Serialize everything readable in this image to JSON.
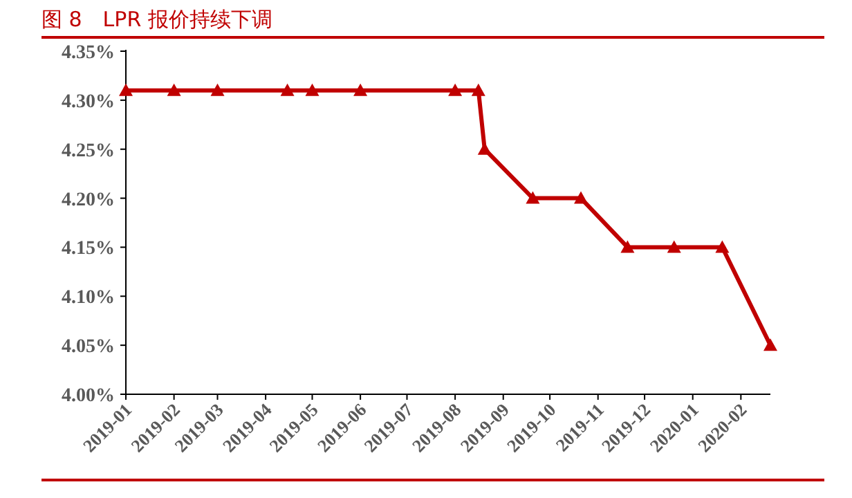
{
  "chart_data": {
    "type": "line",
    "title": "图 8　LPR 报价持续下调",
    "x": [
      "2019-01-01",
      "2019-02-01",
      "2019-03-01",
      "2019-04-15",
      "2019-05-01",
      "2019-06-01",
      "2019-08-01",
      "2019-08-16",
      "2019-08-20",
      "2019-09-20",
      "2019-10-21",
      "2019-11-20",
      "2019-12-20",
      "2020-01-20",
      "2020-02-20"
    ],
    "series": [
      {
        "color": "#c00000",
        "values": [
          4.31,
          4.31,
          4.31,
          4.31,
          4.31,
          4.31,
          4.31,
          4.31,
          4.25,
          4.2,
          4.2,
          4.15,
          4.15,
          4.15,
          4.05
        ]
      }
    ],
    "xlim": [
      "2019-01-01",
      "2020-02-20"
    ],
    "xticks": [
      "2019-01",
      "2019-02",
      "2019-03",
      "2019-04",
      "2019-05",
      "2019-06",
      "2019-07",
      "2019-08",
      "2019-09",
      "2019-10",
      "2019-11",
      "2019-12",
      "2020-01",
      "2020-02"
    ],
    "ylim": [
      4.0,
      4.35
    ],
    "yticks": [
      {
        "value": 4.0,
        "label": "4.00%"
      },
      {
        "value": 4.05,
        "label": "4.05%"
      },
      {
        "value": 4.1,
        "label": "4.10%"
      },
      {
        "value": 4.15,
        "label": "4.15%"
      },
      {
        "value": 4.2,
        "label": "4.20%"
      },
      {
        "value": 4.25,
        "label": "4.25%"
      },
      {
        "value": 4.3,
        "label": "4.30%"
      },
      {
        "value": 4.35,
        "label": "4.35%"
      }
    ],
    "grid": false,
    "marker": "triangle",
    "line_style": "solid"
  }
}
